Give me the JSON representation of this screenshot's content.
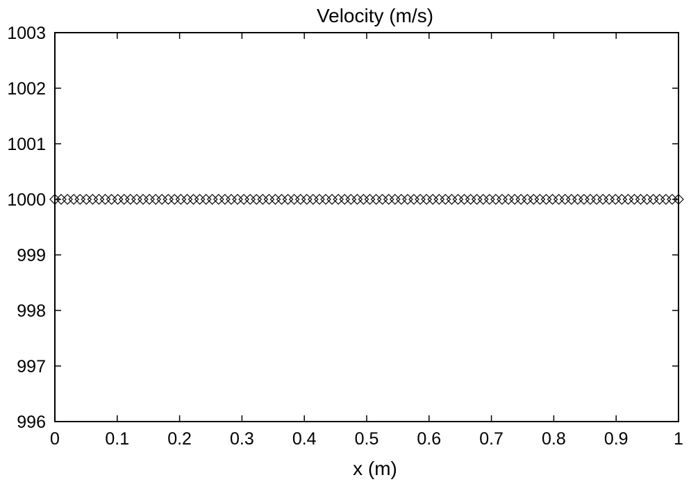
{
  "chart_data": {
    "type": "scatter",
    "title": "Velocity (m/s)",
    "xlabel": "x (m)",
    "ylabel": "",
    "xlim": [
      0,
      1
    ],
    "ylim": [
      996,
      1003
    ],
    "xticks": [
      0,
      0.1,
      0.2,
      0.3,
      0.4,
      0.5,
      0.6,
      0.7,
      0.8,
      0.9,
      1
    ],
    "xtick_labels": [
      "0",
      "0.1",
      "0.2",
      "0.3",
      "0.4",
      "0.5",
      "0.6",
      "0.7",
      "0.8",
      "0.9",
      "1"
    ],
    "yticks": [
      996,
      997,
      998,
      999,
      1000,
      1001,
      1002,
      1003
    ],
    "ytick_labels": [
      "996",
      "997",
      "998",
      "999",
      "1000",
      "1001",
      "1002",
      "1003"
    ],
    "grid": false,
    "legend": "none",
    "marker": "diamond",
    "marker_color": "#000000",
    "series": [
      {
        "x_start": 0,
        "x_end": 1,
        "n_points": 100,
        "y_constant": 1000
      }
    ]
  }
}
